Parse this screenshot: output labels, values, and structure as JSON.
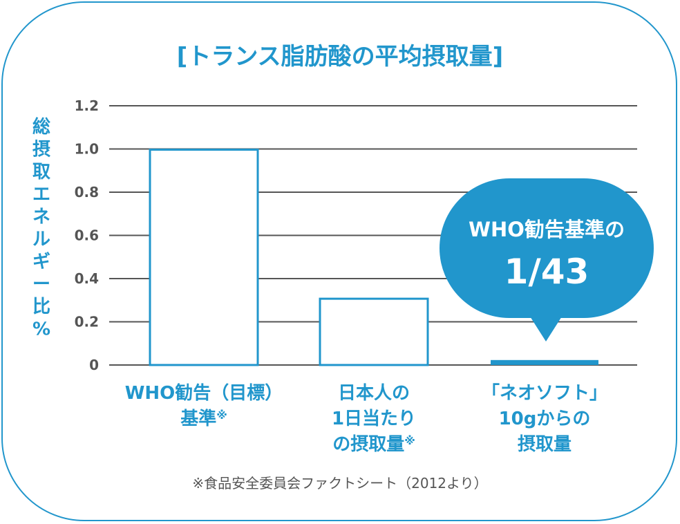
{
  "colors": {
    "accent": "#2196cc",
    "grid": "#555555",
    "text": "#555555",
    "bar_fill": "#ffffff"
  },
  "chart_data": {
    "type": "bar",
    "title": "[トランス脂肪酸の平均摂取量]",
    "ylabel": "総摂取エネルギー比%",
    "ylim": [
      0,
      1.2
    ],
    "yticks": [
      0,
      0.2,
      0.4,
      0.6,
      0.8,
      1.0,
      1.2
    ],
    "ytick_labels": [
      "0",
      "0.2",
      "0.4",
      "0.6",
      "0.8",
      "1.0",
      "1.2"
    ],
    "grid": true,
    "categories": [
      {
        "lines": [
          "WHO勧告（目標）",
          "基準"
        ],
        "mark": "※"
      },
      {
        "lines": [
          "日本人の",
          "1日当たり",
          "の摂取量"
        ],
        "mark": "※"
      },
      {
        "lines": [
          "「ネオソフト」",
          "10gからの",
          "摂取量"
        ],
        "mark": ""
      }
    ],
    "values": [
      1.0,
      0.31,
      0.023
    ],
    "callout": {
      "line1": "WHO勧告基準の",
      "line2": "1/43"
    },
    "footnote": "※食品安全委員会ファクトシート（2012より）"
  }
}
